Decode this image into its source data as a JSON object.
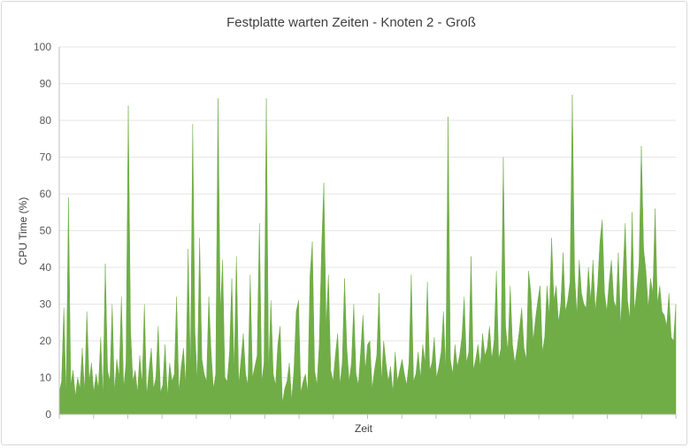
{
  "chart_data": {
    "type": "area",
    "title": "Festplatte warten Zeiten - Knoten 2 - Groß",
    "xlabel": "Zeit",
    "ylabel": "CPU Time (%)",
    "ylim": [
      0,
      100
    ],
    "yticks": [
      0,
      10,
      20,
      30,
      40,
      50,
      60,
      70,
      80,
      90,
      100
    ],
    "grid": true,
    "legend": "none",
    "series": [
      {
        "color": "#70ad47",
        "values": [
          6,
          9,
          29,
          5,
          59,
          8,
          12,
          5,
          10,
          7,
          18,
          6,
          28,
          9,
          14,
          6,
          11,
          7,
          21,
          5,
          41,
          12,
          9,
          30,
          6,
          15,
          10,
          32,
          7,
          14,
          84,
          23,
          9,
          12,
          6,
          16,
          8,
          30,
          5,
          12,
          18,
          7,
          10,
          24,
          6,
          8,
          19,
          5,
          14,
          9,
          11,
          32,
          6,
          13,
          18,
          8,
          45,
          12,
          79,
          22,
          9,
          48,
          15,
          11,
          9,
          32,
          17,
          7,
          11,
          86,
          28,
          42,
          10,
          9,
          17,
          37,
          12,
          43,
          8,
          15,
          22,
          11,
          8,
          38,
          10,
          13,
          16,
          52,
          9,
          14,
          86,
          12,
          31,
          11,
          8,
          19,
          24,
          3,
          7,
          9,
          14,
          4,
          12,
          28,
          31,
          6,
          9,
          11,
          6,
          38,
          47,
          12,
          8,
          19,
          45,
          63,
          24,
          38,
          12,
          9,
          16,
          22,
          8,
          14,
          37,
          18,
          9,
          14,
          30,
          11,
          8,
          17,
          27,
          12,
          19,
          20,
          7,
          12,
          16,
          33,
          9,
          20,
          14,
          9,
          13,
          6,
          17,
          9,
          12,
          15,
          11,
          8,
          14,
          38,
          9,
          11,
          17,
          10,
          19,
          14,
          36,
          12,
          14,
          21,
          10,
          13,
          17,
          28,
          12,
          81,
          15,
          11,
          19,
          13,
          16,
          21,
          32,
          14,
          17,
          43,
          12,
          15,
          19,
          13,
          22,
          16,
          18,
          24,
          15,
          20,
          39,
          15,
          18,
          70,
          24,
          17,
          35,
          19,
          14,
          18,
          23,
          29,
          18,
          15,
          39,
          33,
          20,
          26,
          31,
          35,
          17,
          21,
          35,
          27,
          48,
          31,
          35,
          25,
          30,
          44,
          28,
          31,
          36,
          87,
          38,
          27,
          42,
          33,
          30,
          29,
          40,
          31,
          42,
          28,
          35,
          47,
          53,
          33,
          28,
          36,
          42,
          31,
          29,
          44,
          24,
          38,
          52,
          31,
          26,
          55,
          28,
          34,
          41,
          73,
          45,
          39,
          29,
          37,
          33,
          56,
          30,
          35,
          28,
          27,
          24,
          33,
          21,
          20,
          30
        ]
      }
    ]
  }
}
